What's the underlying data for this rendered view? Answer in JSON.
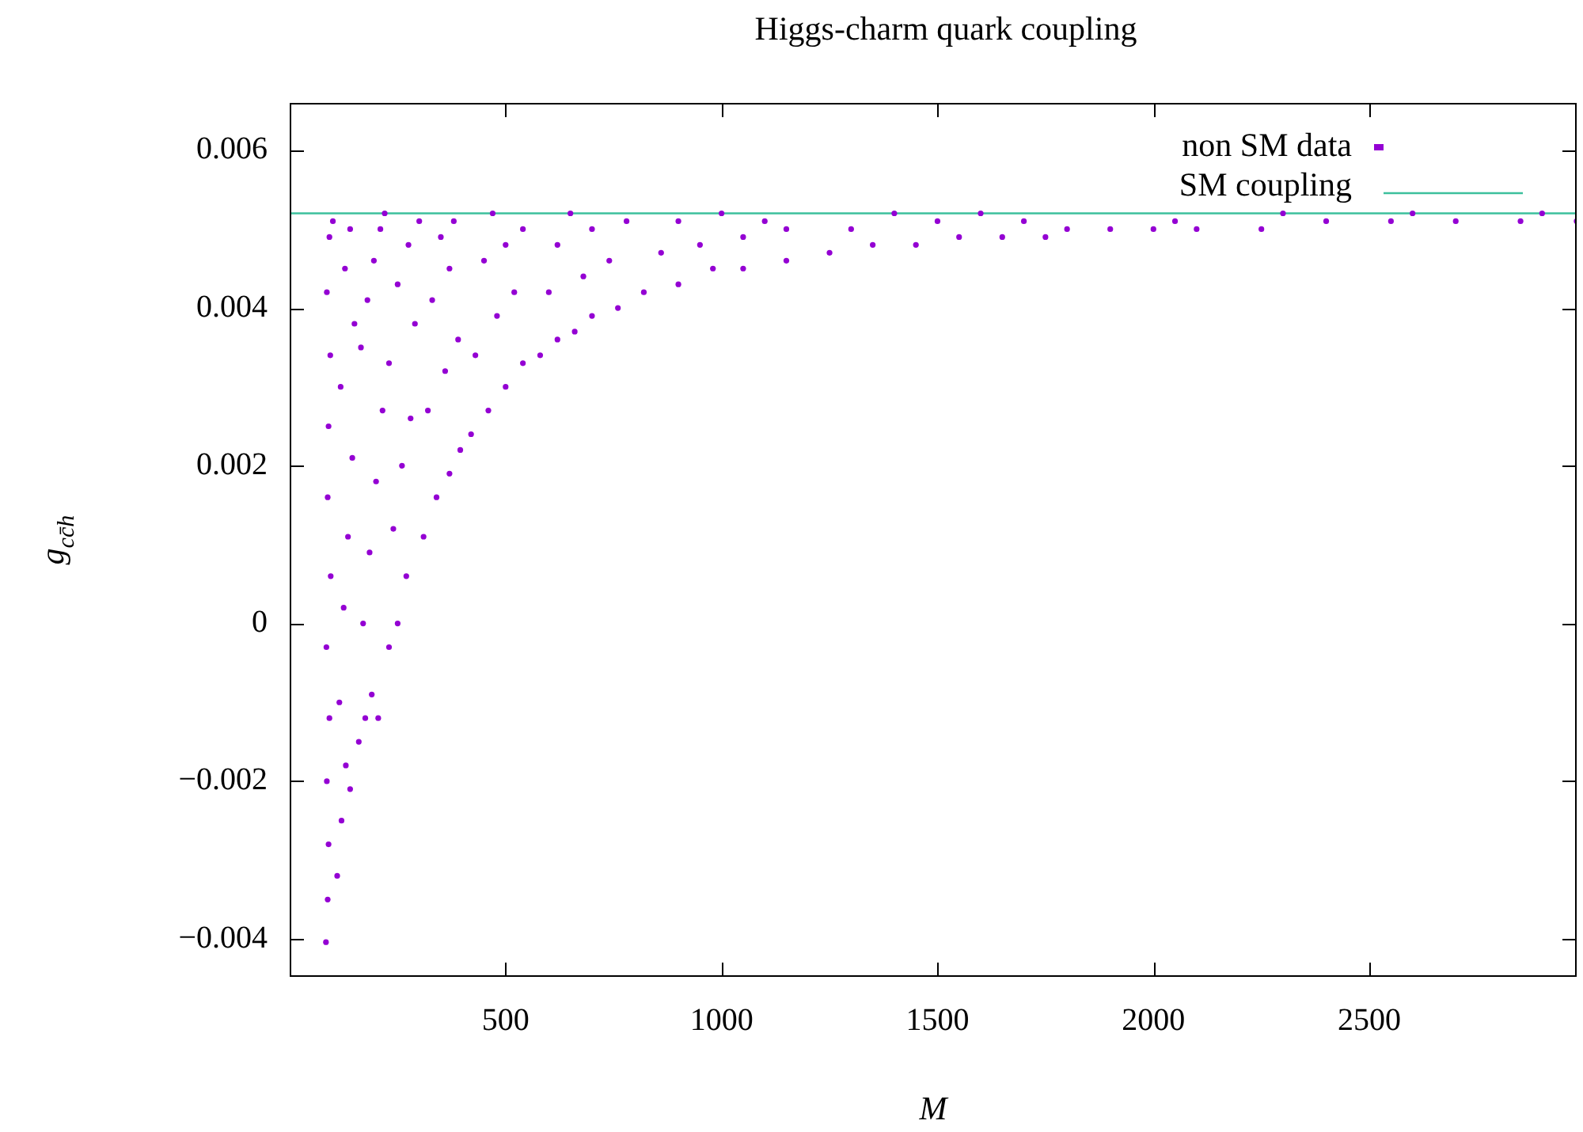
{
  "chart_data": {
    "type": "scatter",
    "title": "Higgs-charm quark coupling",
    "xlabel": "M",
    "ylabel": "g$_{cc̄h}$",
    "xlim": [
      0,
      2980
    ],
    "ylim": [
      -0.00448,
      0.0066
    ],
    "xticks": [
      500,
      1000,
      1500,
      2000,
      2500
    ],
    "yticks": [
      {
        "value": -0.004,
        "label": "−0.004"
      },
      {
        "value": -0.002,
        "label": "−0.002"
      },
      0,
      0.002,
      0.004,
      0.006
    ],
    "grid": false,
    "legend": "top right",
    "marker": "circle",
    "series": [
      {
        "name": "non SM data",
        "color": "#9400d3",
        "x": [
          84,
          88,
          90,
          86,
          92,
          85,
          95,
          88,
          90,
          94,
          86,
          92,
          100,
          110,
          120,
          130,
          140,
          115,
          125,
          135,
          145,
          118,
          150,
          128,
          140,
          160,
          175,
          190,
          205,
          170,
          185,
          200,
          215,
          165,
          180,
          195,
          210,
          220,
          230,
          250,
          270,
          240,
          260,
          280,
          230,
          290,
          250,
          275,
          300,
          310,
          340,
          370,
          395,
          320,
          360,
          390,
          330,
          370,
          350,
          380,
          420,
          460,
          500,
          540,
          430,
          480,
          520,
          450,
          500,
          540,
          470,
          580,
          620,
          660,
          700,
          760,
          600,
          680,
          740,
          620,
          700,
          780,
          650,
          820,
          900,
          980,
          1050,
          1150,
          860,
          950,
          1050,
          1150,
          900,
          1000,
          1100,
          1250,
          1350,
          1450,
          1550,
          1650,
          1750,
          1300,
          1500,
          1700,
          1400,
          1600,
          1800,
          1900,
          2000,
          2100,
          2250,
          2400,
          2550,
          2700,
          2850,
          2980,
          2050,
          2300,
          2600,
          2900
        ],
        "values": [
          -0.00404,
          -0.0035,
          -0.0028,
          -0.002,
          -0.0012,
          -0.0003,
          0.0006,
          0.0016,
          0.0025,
          0.0034,
          0.0042,
          0.0049,
          0.0051,
          -0.0032,
          -0.0025,
          -0.0018,
          -0.0021,
          -0.001,
          0.0002,
          0.0011,
          0.0021,
          0.003,
          0.0038,
          0.0045,
          0.005,
          -0.0015,
          -0.0012,
          -0.0009,
          -0.0012,
          0.0,
          0.0009,
          0.0018,
          0.0027,
          0.0035,
          0.0041,
          0.0046,
          0.005,
          0.0052,
          -0.0003,
          0.0,
          0.0006,
          0.0012,
          0.002,
          0.0026,
          0.0033,
          0.0038,
          0.0043,
          0.0048,
          0.0051,
          0.0011,
          0.0016,
          0.0019,
          0.0022,
          0.0027,
          0.0032,
          0.0036,
          0.0041,
          0.0045,
          0.0049,
          0.0051,
          0.0024,
          0.0027,
          0.003,
          0.0033,
          0.0034,
          0.0039,
          0.0042,
          0.0046,
          0.0048,
          0.005,
          0.0052,
          0.0034,
          0.0036,
          0.0037,
          0.0039,
          0.004,
          0.0042,
          0.0044,
          0.0046,
          0.0048,
          0.005,
          0.0051,
          0.0052,
          0.0042,
          0.0043,
          0.0045,
          0.0045,
          0.0046,
          0.0047,
          0.0048,
          0.0049,
          0.005,
          0.0051,
          0.0052,
          0.0051,
          0.0047,
          0.0048,
          0.0048,
          0.0049,
          0.0049,
          0.0049,
          0.005,
          0.0051,
          0.0051,
          0.0052,
          0.0052,
          0.005,
          0.005,
          0.005,
          0.005,
          0.005,
          0.0051,
          0.0051,
          0.0051,
          0.0051,
          0.0051,
          0.0051,
          0.0052,
          0.0052,
          0.0052
        ]
      },
      {
        "name": "SM coupling",
        "type": "line",
        "marker": "none",
        "color": "#3cc09c",
        "x": [
          0,
          2980
        ],
        "values": [
          0.0052,
          0.0052
        ]
      }
    ]
  }
}
